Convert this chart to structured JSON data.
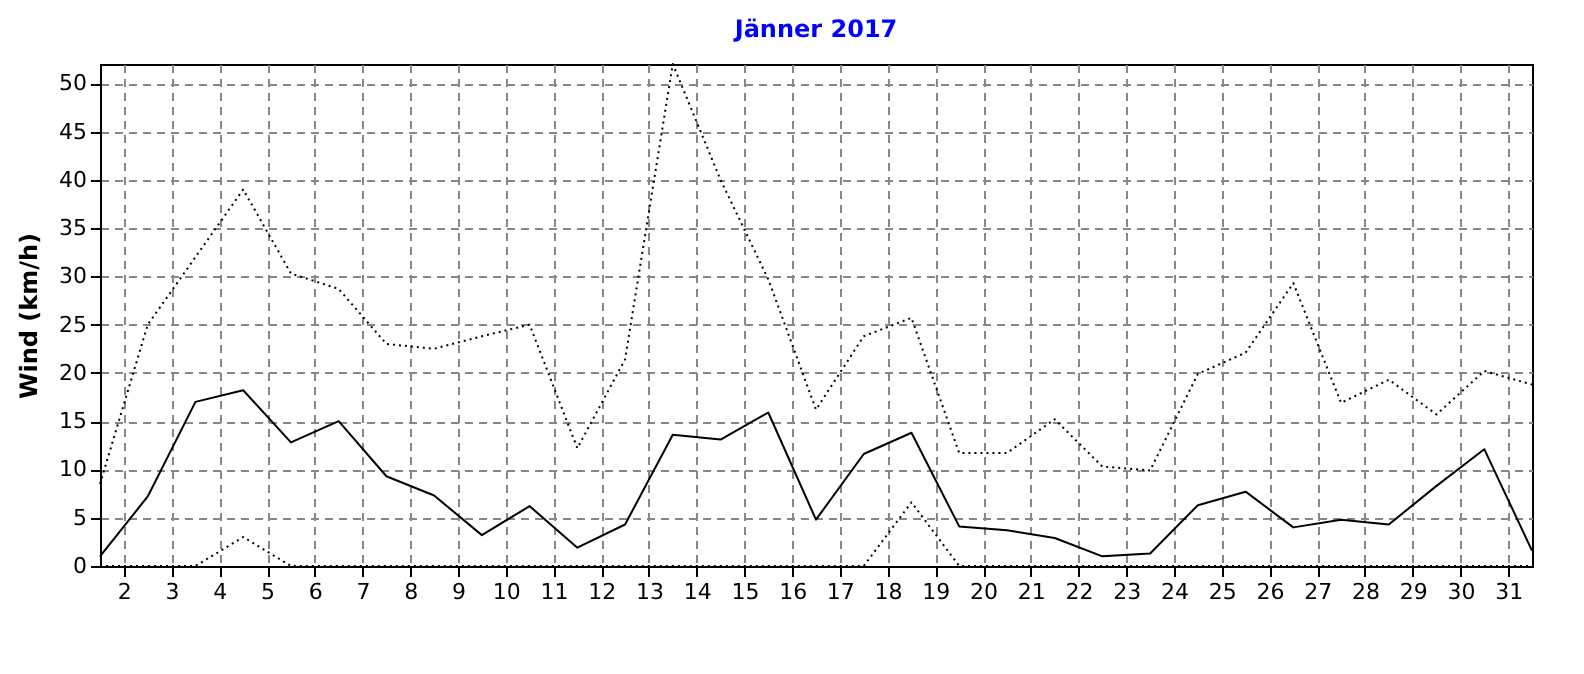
{
  "chart_data": {
    "type": "line",
    "title": "Jänner 2017",
    "ylabel": "Wind (km/h)",
    "x": [
      1.5,
      2.5,
      3.5,
      4.5,
      5.5,
      6.5,
      7.5,
      8.5,
      9.5,
      10.5,
      11.5,
      12.5,
      13.5,
      14.5,
      15.5,
      16.5,
      17.5,
      18.5,
      19.5,
      20.5,
      21.5,
      22.5,
      23.5,
      24.5,
      25.5,
      26.5,
      27.5,
      28.5,
      29.5,
      30.5,
      31.5
    ],
    "series": [
      {
        "color": "#000000",
        "line_style": "dotted",
        "values": [
          8.5,
          25,
          32,
          39,
          30.3,
          28.7,
          23,
          22.5,
          23.8,
          25,
          12.2,
          21.4,
          52,
          40,
          29.7,
          16.2,
          23.8,
          25.7,
          11.7,
          11.7,
          15.2,
          10.3,
          9.9,
          19.9,
          22.1,
          29.3,
          16.9,
          19.3,
          15.7,
          20.2,
          18.8
        ]
      },
      {
        "color": "#000000",
        "line_style": "solid",
        "values": [
          1,
          7.2,
          17,
          18.2,
          12.8,
          15,
          9.3,
          7.3,
          3.2,
          6.2,
          1.9,
          4.3,
          13.6,
          13.1,
          15.9,
          4.8,
          11.6,
          13.8,
          4.1,
          3.7,
          2.9,
          1,
          1.3,
          6.3,
          7.7,
          4,
          4.8,
          4.3,
          8.3,
          12.1,
          1.6
        ]
      },
      {
        "color": "#000000",
        "line_style": "dotted",
        "values": [
          0,
          0,
          0,
          3,
          0,
          0,
          0,
          0,
          0,
          0,
          0,
          0,
          0,
          0,
          0,
          0,
          0,
          6.6,
          0,
          0,
          0,
          0,
          0,
          0,
          0,
          0,
          0,
          0,
          0,
          0,
          0
        ]
      }
    ],
    "xlim": [
      1.5,
      31.5
    ],
    "xticks": [
      2,
      3,
      4,
      5,
      6,
      7,
      8,
      9,
      10,
      11,
      12,
      13,
      14,
      15,
      16,
      17,
      18,
      19,
      20,
      21,
      22,
      23,
      24,
      25,
      26,
      27,
      28,
      29,
      30,
      31
    ],
    "ylim": [
      0,
      52
    ],
    "yticks": [
      0,
      5,
      10,
      15,
      20,
      25,
      30,
      35,
      40,
      45,
      50
    ],
    "grid": true,
    "marker": "none"
  }
}
